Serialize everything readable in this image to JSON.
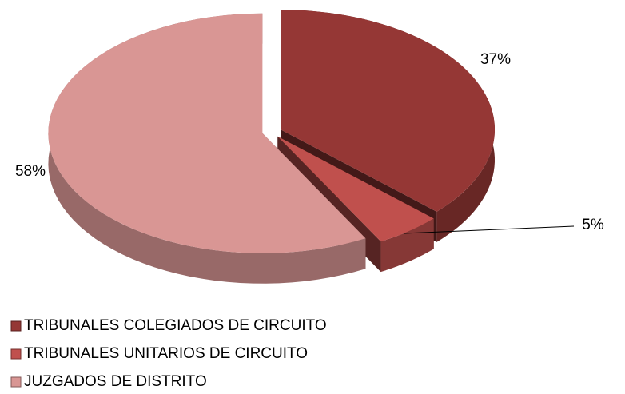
{
  "chart_data": {
    "type": "pie",
    "categories": [
      "TRIBUNALES COLEGIADOS DE CIRCUITO",
      "TRIBUNALES UNITARIOS DE CIRCUITO",
      "JUZGADOS DE DISTRITO"
    ],
    "values": [
      37,
      5,
      58
    ],
    "value_labels": [
      "37%",
      "5%",
      "58%"
    ],
    "colors": [
      "#953735",
      "#c0504d",
      "#d99694"
    ],
    "legend": "bottom"
  }
}
